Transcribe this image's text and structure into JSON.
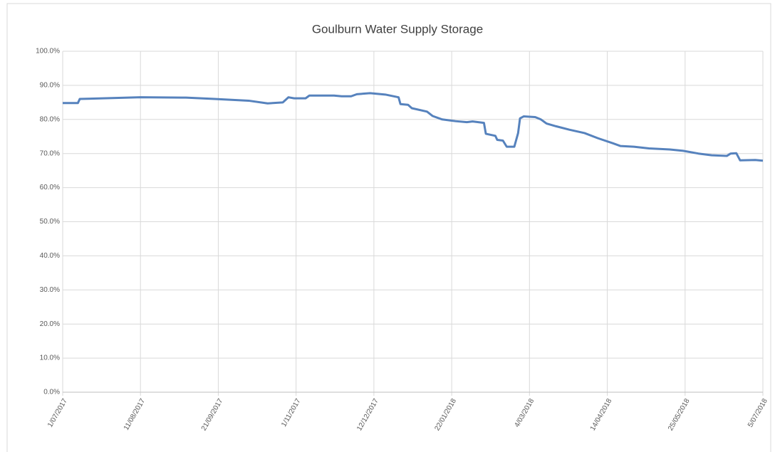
{
  "chart_data": {
    "type": "line",
    "title": "Goulburn Water Supply Storage",
    "color": "#5682bd",
    "grid": true,
    "x": [
      "2017-07-01",
      "2017-07-09",
      "2017-07-10",
      "2017-08-11",
      "2017-09-04",
      "2017-09-19",
      "2017-10-07",
      "2017-10-17",
      "2017-10-25",
      "2017-10-28",
      "2017-10-31",
      "2017-11-06",
      "2017-11-08",
      "2017-11-21",
      "2017-11-25",
      "2017-11-30",
      "2017-12-03",
      "2017-12-10",
      "2017-12-18",
      "2017-12-25",
      "2017-12-26",
      "2017-12-30",
      "2018-01-01",
      "2018-01-09",
      "2018-01-12",
      "2018-01-17",
      "2018-01-24",
      "2018-01-30",
      "2018-02-02",
      "2018-02-08",
      "2018-02-09",
      "2018-02-14",
      "2018-02-15",
      "2018-02-18",
      "2018-02-20",
      "2018-02-24",
      "2018-02-26",
      "2018-02-27",
      "2018-03-01",
      "2018-03-07",
      "2018-03-10",
      "2018-03-13",
      "2018-03-18",
      "2018-03-25",
      "2018-04-02",
      "2018-04-09",
      "2018-04-17",
      "2018-04-21",
      "2018-04-28",
      "2018-05-06",
      "2018-05-17",
      "2018-05-24",
      "2018-06-01",
      "2018-06-08",
      "2018-06-16",
      "2018-06-18",
      "2018-06-21",
      "2018-06-23",
      "2018-07-01",
      "2018-07-05"
    ],
    "values": [
      84.8,
      84.8,
      86.0,
      86.5,
      86.4,
      86.0,
      85.5,
      84.7,
      85.0,
      86.5,
      86.2,
      86.2,
      87.0,
      87.0,
      86.8,
      86.8,
      87.4,
      87.7,
      87.3,
      86.5,
      84.5,
      84.3,
      83.3,
      82.3,
      81.0,
      80.0,
      79.5,
      79.2,
      79.4,
      79.0,
      75.8,
      75.2,
      74.0,
      73.8,
      72.0,
      72.0,
      76.0,
      80.3,
      80.9,
      80.7,
      80.0,
      78.8,
      78.0,
      77.0,
      76.0,
      74.5,
      73.0,
      72.2,
      72.0,
      71.5,
      71.2,
      70.8,
      70.0,
      69.5,
      69.3,
      70.0,
      70.1,
      68.0,
      68.1,
      67.9
    ],
    "xlim": [
      "2017-07-01",
      "2018-07-05"
    ],
    "xticks": [
      {
        "value": "2017-07-01",
        "label": "1/07/2017"
      },
      {
        "value": "2017-08-11",
        "label": "11/08/2017"
      },
      {
        "value": "2017-09-21",
        "label": "21/09/2017"
      },
      {
        "value": "2017-11-01",
        "label": "1/11/2017"
      },
      {
        "value": "2017-12-12",
        "label": "12/12/2017"
      },
      {
        "value": "2018-01-22",
        "label": "22/01/2018"
      },
      {
        "value": "2018-03-04",
        "label": "4/03/2018"
      },
      {
        "value": "2018-04-14",
        "label": "14/04/2018"
      },
      {
        "value": "2018-05-25",
        "label": "25/05/2018"
      },
      {
        "value": "2018-07-05",
        "label": "5/07/2018"
      }
    ],
    "ylim": [
      0,
      100
    ],
    "yticks": [
      {
        "value": 0,
        "label": "0.0%"
      },
      {
        "value": 10,
        "label": "10.0%"
      },
      {
        "value": 20,
        "label": "20.0%"
      },
      {
        "value": 30,
        "label": "30.0%"
      },
      {
        "value": 40,
        "label": "40.0%"
      },
      {
        "value": 50,
        "label": "50.0%"
      },
      {
        "value": 60,
        "label": "60.0%"
      },
      {
        "value": 70,
        "label": "70.0%"
      },
      {
        "value": 80,
        "label": "80.0%"
      },
      {
        "value": 90,
        "label": "90.0%"
      },
      {
        "value": 100,
        "label": "100.0%"
      }
    ]
  }
}
